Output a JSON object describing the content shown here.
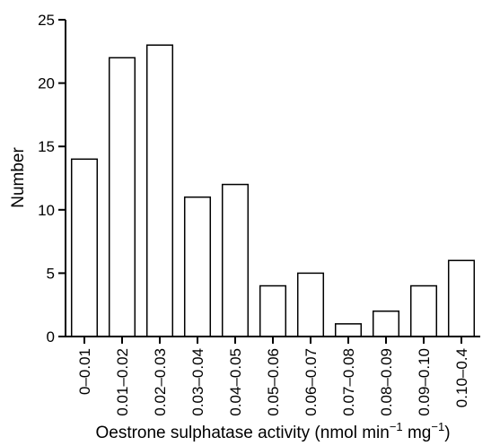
{
  "chart_data": {
    "type": "bar",
    "categories": [
      "0–0.01",
      "0.01–0.02",
      "0.02–0.03",
      "0.03–0.04",
      "0.04–0.05",
      "0.05–0.06",
      "0.06–0.07",
      "0.07–0.08",
      "0.08–0.09",
      "0.09–0.10",
      "0.10–0.4"
    ],
    "values": [
      14,
      22,
      23,
      11,
      12,
      4,
      5,
      1,
      2,
      4,
      6
    ],
    "ylim": [
      0,
      25
    ],
    "yticks": [
      0,
      5,
      10,
      15,
      20,
      25
    ],
    "ylabel": "Number",
    "xlabel": {
      "main": "Oestrone sulphatase activity (nmol min",
      "sup1": "−1",
      "mid": " mg",
      "sup2": "−1",
      "end": ")"
    },
    "grid": false,
    "bar_fill": "#ffffff",
    "bar_stroke": "#000000"
  }
}
